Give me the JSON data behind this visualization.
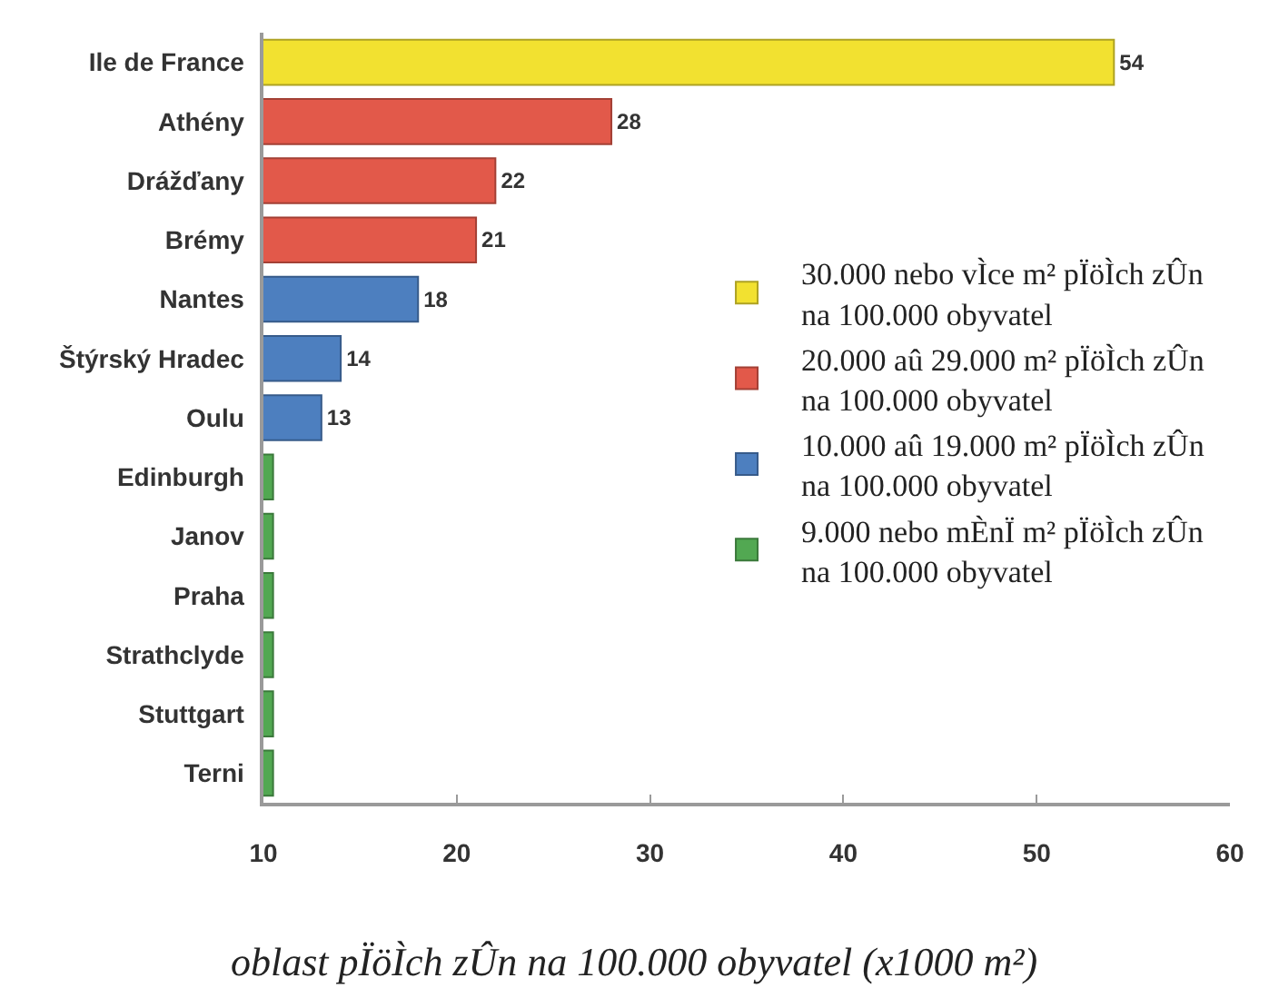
{
  "chart_data": {
    "type": "bar",
    "orientation": "horizontal",
    "categories": [
      "Ile de France",
      "Athény",
      "Drážďany",
      "Brémy",
      "Nantes",
      "Štýrský Hradec",
      "Oulu",
      "Edinburgh",
      "Janov",
      "Praha",
      "Strathclyde",
      "Stuttgart",
      "Terni"
    ],
    "series": [
      {
        "name": "30.000 nebo vÌce m² pÏöÌch zÛn\nna 100.000 obyvatel",
        "color": "#f2e130",
        "values": [
          54,
          null,
          null,
          null,
          null,
          null,
          null,
          null,
          null,
          null,
          null,
          null,
          null
        ],
        "value_labels": [
          "54",
          null,
          null,
          null,
          null,
          null,
          null,
          null,
          null,
          null,
          null,
          null,
          null
        ]
      },
      {
        "name": "20.000 aû 29.000 m² pÏöÌch zÛn\nna 100.000 obyvatel",
        "color": "#e2594a",
        "values": [
          null,
          28,
          22,
          21,
          null,
          null,
          null,
          null,
          null,
          null,
          null,
          null,
          null
        ],
        "value_labels": [
          null,
          "28",
          "22",
          "21",
          null,
          null,
          null,
          null,
          null,
          null,
          null,
          null,
          null
        ]
      },
      {
        "name": "10.000 aû 19.000 m² pÏöÌch zÛn\nna 100.000 obyvatel",
        "color": "#4d7fbf",
        "values": [
          null,
          null,
          null,
          null,
          18,
          14,
          13,
          null,
          null,
          null,
          null,
          null,
          null
        ],
        "value_labels": [
          null,
          null,
          null,
          null,
          "18",
          "14",
          "13",
          null,
          null,
          null,
          null,
          null,
          null
        ]
      },
      {
        "name": "9.000 nebo mÈnÏ m² pÏöÌch zÛn\nna 100.000 obyvatel",
        "color": "#52a852",
        "values": [
          null,
          null,
          null,
          null,
          null,
          null,
          null,
          10.5,
          10.5,
          10.5,
          10.5,
          10.5,
          10.5
        ]
      }
    ],
    "xlim": [
      10,
      60
    ],
    "xticks": [
      10,
      20,
      30,
      40,
      50,
      60
    ],
    "xlabel": "oblast pÏöÌch zÛn na 100.000 obyvatel (x1000 m²)",
    "legend": "right"
  }
}
